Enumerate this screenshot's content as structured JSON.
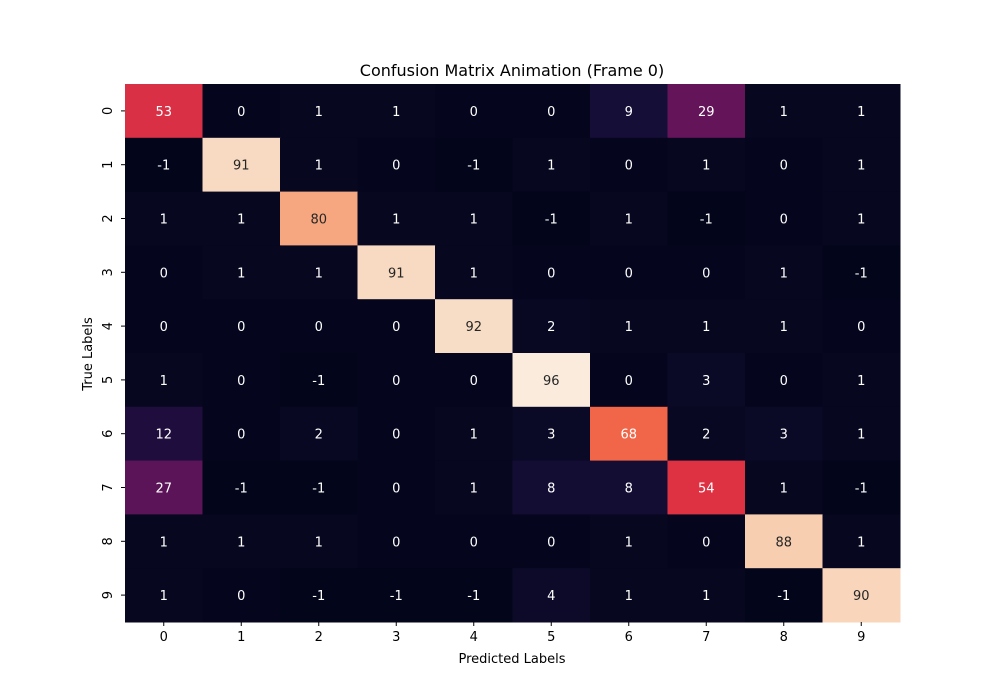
{
  "chart_data": {
    "type": "heatmap",
    "title": "Confusion Matrix Animation (Frame 0)",
    "xlabel": "Predicted Labels",
    "ylabel": "True Labels",
    "x_ticks": [
      "0",
      "1",
      "2",
      "3",
      "4",
      "5",
      "6",
      "7",
      "8",
      "9"
    ],
    "y_ticks": [
      "0",
      "1",
      "2",
      "3",
      "4",
      "5",
      "6",
      "7",
      "8",
      "9"
    ],
    "values": [
      [
        53,
        0,
        1,
        1,
        0,
        0,
        9,
        29,
        1,
        1
      ],
      [
        -1,
        91,
        1,
        0,
        -1,
        1,
        0,
        1,
        0,
        1
      ],
      [
        1,
        1,
        80,
        1,
        1,
        -1,
        1,
        -1,
        0,
        1
      ],
      [
        0,
        1,
        1,
        91,
        1,
        0,
        0,
        0,
        1,
        -1
      ],
      [
        0,
        0,
        0,
        0,
        92,
        2,
        1,
        1,
        1,
        0
      ],
      [
        1,
        0,
        -1,
        0,
        0,
        96,
        0,
        3,
        0,
        1
      ],
      [
        12,
        0,
        2,
        0,
        1,
        3,
        68,
        2,
        3,
        1
      ],
      [
        27,
        -1,
        -1,
        0,
        1,
        8,
        8,
        54,
        1,
        -1
      ],
      [
        1,
        1,
        1,
        0,
        0,
        0,
        1,
        0,
        88,
        1
      ],
      [
        1,
        0,
        -1,
        -1,
        -1,
        4,
        1,
        1,
        -1,
        90
      ]
    ],
    "value_range": [
      -1,
      96
    ],
    "colormap": "rocket",
    "colorbar": false,
    "grid": false
  }
}
